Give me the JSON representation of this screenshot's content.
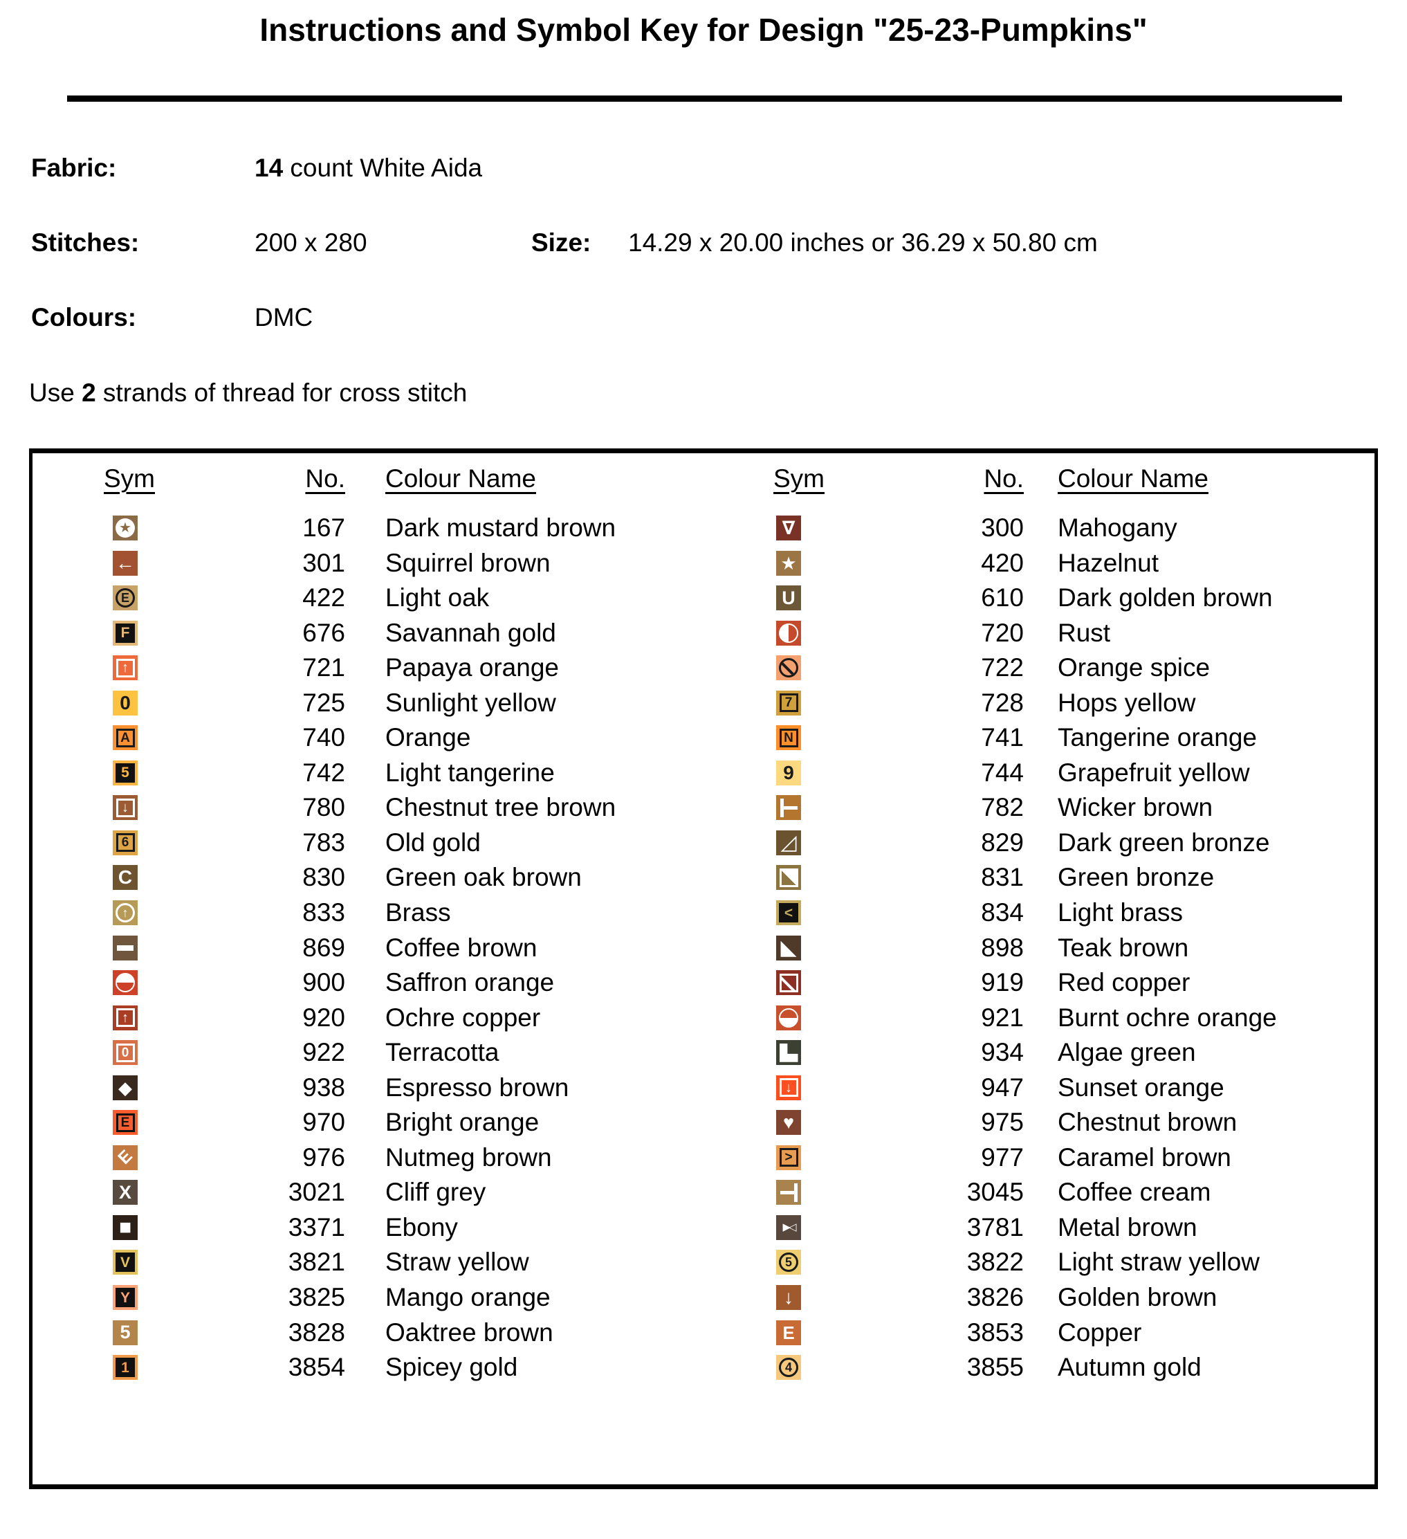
{
  "title": "Instructions and Symbol Key for Design \"25-23-Pumpkins\"",
  "info": {
    "fabric_label": "Fabric:",
    "fabric_value_bold": "14",
    "fabric_value_rest": " count White Aida",
    "stitches_label": "Stitches:",
    "stitches_value": "200 x 280",
    "size_label": "Size:",
    "size_value": "14.29 x 20.00 inches or 36.29 x 50.80 cm",
    "colours_label": "Colours:",
    "colours_value": "DMC",
    "strands_prefix": "Use ",
    "strands_bold": "2",
    "strands_suffix": " strands of thread for cross stitch"
  },
  "table": {
    "headers": {
      "sym": "Sym",
      "no": "No.",
      "colour": "Colour Name"
    },
    "left_rows": [
      {
        "no": "167",
        "name": "Dark mustard brown",
        "sym": {
          "bg": "#8A6B46",
          "fg": "#ffffff",
          "kind": "discstar",
          "glyph": "★"
        }
      },
      {
        "no": "301",
        "name": "Squirrel brown",
        "sym": {
          "bg": "#A35231",
          "fg": "#ffffff",
          "kind": "plain",
          "glyph": "←",
          "size": 28
        }
      },
      {
        "no": "422",
        "name": "Light oak",
        "sym": {
          "bg": "#C9A267",
          "fg": "#1a1a1a",
          "kind": "circled",
          "glyph": "E"
        }
      },
      {
        "no": "676",
        "name": "Savannah gold",
        "sym": {
          "bg": "#E5B878",
          "fg": "#111111",
          "kind": "knockout",
          "glyph": "F"
        }
      },
      {
        "no": "721",
        "name": "Papaya orange",
        "sym": {
          "bg": "#EF6A3B",
          "fg": "#ffffff",
          "kind": "boxed",
          "glyph": "↑",
          "size": 20
        }
      },
      {
        "no": "725",
        "name": "Sunlight yellow",
        "sym": {
          "bg": "#FDC240",
          "fg": "#1a1a1a",
          "kind": "plain",
          "glyph": "0",
          "size": 28
        }
      },
      {
        "no": "740",
        "name": "Orange",
        "sym": {
          "bg": "#FD9030",
          "fg": "#1a1a1a",
          "kind": "boxed",
          "glyph": "A"
        }
      },
      {
        "no": "742",
        "name": "Light tangerine",
        "sym": {
          "bg": "#FEB440",
          "fg": "#111111",
          "kind": "knockout",
          "glyph": "5"
        }
      },
      {
        "no": "780",
        "name": "Chestnut tree brown",
        "sym": {
          "bg": "#9D5B33",
          "fg": "#ffffff",
          "kind": "boxed",
          "glyph": "↓",
          "size": 20
        }
      },
      {
        "no": "783",
        "name": "Old gold",
        "sym": {
          "bg": "#DFA443",
          "fg": "#1a1a1a",
          "kind": "boxed",
          "glyph": "6"
        }
      },
      {
        "no": "830",
        "name": "Green oak brown",
        "sym": {
          "bg": "#6F5430",
          "fg": "#ffffff",
          "kind": "plain",
          "glyph": "C",
          "size": 28
        }
      },
      {
        "no": "833",
        "name": "Brass",
        "sym": {
          "bg": "#B69A55",
          "fg": "#ffffff",
          "kind": "circled",
          "glyph": "↑"
        }
      },
      {
        "no": "869",
        "name": "Coffee brown",
        "sym": {
          "bg": "#6F563C",
          "fg": "#ffffff",
          "kind": "bar",
          "glyph": ""
        }
      },
      {
        "no": "900",
        "name": "Saffron orange",
        "sym": {
          "bg": "#CC4127",
          "fg": "#ffffff",
          "kind": "half-top",
          "glyph": ""
        }
      },
      {
        "no": "920",
        "name": "Ochre copper",
        "sym": {
          "bg": "#A93E25",
          "fg": "#ffffff",
          "kind": "boxed",
          "glyph": "↑",
          "size": 20
        }
      },
      {
        "no": "922",
        "name": "Terracotta",
        "sym": {
          "bg": "#D96F46",
          "fg": "#ffffff",
          "kind": "boxed",
          "glyph": "0"
        }
      },
      {
        "no": "938",
        "name": "Espresso brown",
        "sym": {
          "bg": "#39291F",
          "fg": "#ffffff",
          "kind": "plain",
          "glyph": "◆",
          "size": 26
        }
      },
      {
        "no": "970",
        "name": "Bright orange",
        "sym": {
          "bg": "#FB5C2E",
          "fg": "#111111",
          "kind": "boxed",
          "glyph": "E"
        }
      },
      {
        "no": "976",
        "name": "Nutmeg brown",
        "sym": {
          "bg": "#C27A40",
          "fg": "#ffffff",
          "kind": "rot-e",
          "glyph": "E"
        }
      },
      {
        "no": "3021",
        "name": "Cliff grey",
        "sym": {
          "bg": "#574A3E",
          "fg": "#ffffff",
          "kind": "plain",
          "glyph": "X",
          "size": 27
        }
      },
      {
        "no": "3371",
        "name": "Ebony",
        "sym": {
          "bg": "#2C2017",
          "fg": "#ffffff",
          "kind": "plain",
          "glyph": "■",
          "size": 30
        }
      },
      {
        "no": "3821",
        "name": "Straw yellow",
        "sym": {
          "bg": "#E3C45C",
          "fg": "#111111",
          "kind": "knockout",
          "glyph": "V"
        }
      },
      {
        "no": "3825",
        "name": "Mango orange",
        "sym": {
          "bg": "#FEA377",
          "fg": "#111111",
          "kind": "knockout",
          "glyph": "Y"
        }
      },
      {
        "no": "3828",
        "name": "Oaktree brown",
        "sym": {
          "bg": "#B3854B",
          "fg": "#ffffff",
          "kind": "plain",
          "glyph": "5",
          "size": 27
        }
      },
      {
        "no": "3854",
        "name": "Spicey gold",
        "sym": {
          "bg": "#F19B4D",
          "fg": "#111111",
          "kind": "knockout",
          "glyph": "1"
        }
      }
    ],
    "right_rows": [
      {
        "no": "300",
        "name": "Mahogany",
        "sym": {
          "bg": "#7B3226",
          "fg": "#ffffff",
          "kind": "plain",
          "glyph": "∇",
          "size": 27
        }
      },
      {
        "no": "420",
        "name": "Hazelnut",
        "sym": {
          "bg": "#9B7544",
          "fg": "#ffffff",
          "kind": "plain",
          "glyph": "★",
          "size": 26
        }
      },
      {
        "no": "610",
        "name": "Dark golden brown",
        "sym": {
          "bg": "#6C5836",
          "fg": "#ffffff",
          "kind": "plain",
          "glyph": "U",
          "size": 27
        }
      },
      {
        "no": "720",
        "name": "Rust",
        "sym": {
          "bg": "#C54A2B",
          "fg": "#ffffff",
          "kind": "half-left",
          "glyph": ""
        }
      },
      {
        "no": "722",
        "name": "Orange spice",
        "sym": {
          "bg": "#F5A06F",
          "fg": "#1a1a1a",
          "kind": "circle-slash",
          "glyph": ""
        }
      },
      {
        "no": "728",
        "name": "Hops yellow",
        "sym": {
          "bg": "#CFA03C",
          "fg": "#1a1a1a",
          "kind": "boxed",
          "glyph": "7"
        }
      },
      {
        "no": "741",
        "name": "Tangerine orange",
        "sym": {
          "bg": "#FD8F2B",
          "fg": "#1a1a1a",
          "kind": "boxed",
          "glyph": "N"
        }
      },
      {
        "no": "744",
        "name": "Grapefruit yellow",
        "sym": {
          "bg": "#FCD97E",
          "fg": "#1a1a1a",
          "kind": "plain",
          "glyph": "9",
          "size": 28
        }
      },
      {
        "no": "782",
        "name": "Wicker brown",
        "sym": {
          "bg": "#B4752F",
          "fg": "#ffffff",
          "kind": "tack-right",
          "glyph": ""
        }
      },
      {
        "no": "829",
        "name": "Dark green bronze",
        "sym": {
          "bg": "#6B532F",
          "fg": "#ffffff",
          "kind": "plain",
          "glyph": "◿",
          "size": 30
        }
      },
      {
        "no": "831",
        "name": "Green bronze",
        "sym": {
          "bg": "#8C7540",
          "fg": "#ffffff",
          "kind": "box-tri",
          "glyph": ""
        }
      },
      {
        "no": "834",
        "name": "Light brass",
        "sym": {
          "bg": "#C4AA5B",
          "fg": "#111111",
          "kind": "knockout",
          "glyph": "<"
        }
      },
      {
        "no": "898",
        "name": "Teak brown",
        "sym": {
          "bg": "#4F3A2A",
          "fg": "#ffffff",
          "kind": "plain",
          "glyph": "◣",
          "size": 30
        }
      },
      {
        "no": "919",
        "name": "Red copper",
        "sym": {
          "bg": "#8E2F23",
          "fg": "#ffffff",
          "kind": "box-diag",
          "glyph": ""
        }
      },
      {
        "no": "921",
        "name": "Burnt ochre orange",
        "sym": {
          "bg": "#C8502D",
          "fg": "#ffffff",
          "kind": "half-bottom",
          "glyph": ""
        }
      },
      {
        "no": "934",
        "name": "Algae green",
        "sym": {
          "bg": "#3B4033",
          "fg": "#ffffff",
          "kind": "l-block",
          "glyph": ""
        }
      },
      {
        "no": "947",
        "name": "Sunset orange",
        "sym": {
          "bg": "#FB4F22",
          "fg": "#ffffff",
          "kind": "boxed",
          "glyph": "↓",
          "size": 20
        }
      },
      {
        "no": "975",
        "name": "Chestnut brown",
        "sym": {
          "bg": "#7E4430",
          "fg": "#ffffff",
          "kind": "plain",
          "glyph": "♥",
          "size": 27
        }
      },
      {
        "no": "977",
        "name": "Caramel brown",
        "sym": {
          "bg": "#E79C52",
          "fg": "#1a1a1a",
          "kind": "boxed",
          "glyph": ">"
        }
      },
      {
        "no": "3045",
        "name": "Coffee cream",
        "sym": {
          "bg": "#A8834E",
          "fg": "#ffffff",
          "kind": "tack-left",
          "glyph": ""
        }
      },
      {
        "no": "3781",
        "name": "Metal brown",
        "sym": {
          "bg": "#57473C",
          "fg": "#ffffff",
          "kind": "bowtie",
          "glyph": "▶◁"
        }
      },
      {
        "no": "3822",
        "name": "Light straw yellow",
        "sym": {
          "bg": "#EFCE72",
          "fg": "#1a1a1a",
          "kind": "circled",
          "glyph": "5"
        }
      },
      {
        "no": "3826",
        "name": "Golden brown",
        "sym": {
          "bg": "#A05A2D",
          "fg": "#ffffff",
          "kind": "plain",
          "glyph": "↓",
          "size": 28
        }
      },
      {
        "no": "3853",
        "name": "Copper",
        "sym": {
          "bg": "#C96B35",
          "fg": "#ffffff",
          "kind": "plain",
          "glyph": "E",
          "size": 26
        }
      },
      {
        "no": "3855",
        "name": "Autumn gold",
        "sym": {
          "bg": "#F5C87D",
          "fg": "#1a1a1a",
          "kind": "circled",
          "glyph": "4"
        }
      }
    ]
  }
}
